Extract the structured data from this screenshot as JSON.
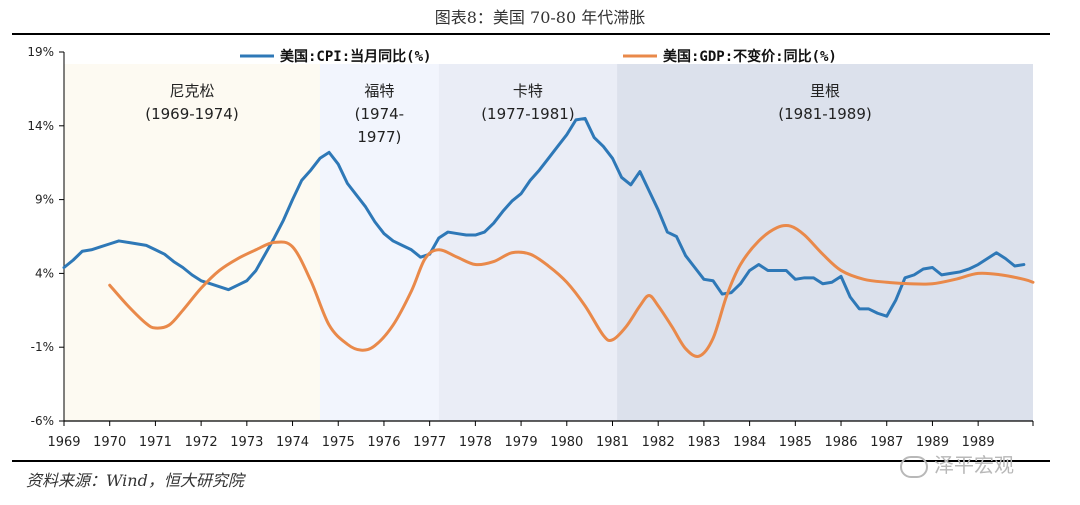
{
  "title": "图表8：美国 70-80 年代滞胀",
  "source": "资料来源：Wind，恒大研究院",
  "watermark": "泽平宏观",
  "colors": {
    "cpi": "#2e78b7",
    "gdp": "#e9894a",
    "axis": "#000000"
  },
  "chart_data": {
    "type": "line",
    "y_ticks": [
      "19%",
      "14%",
      "9%",
      "4%",
      "-1%",
      "-6%"
    ],
    "ylim": [
      -6,
      19
    ],
    "xlim": [
      1969,
      1990.2
    ],
    "x_ticks": [
      "1969",
      "1970",
      "1971",
      "1972",
      "1973",
      "1974",
      "1975",
      "1976",
      "1977",
      "1978",
      "1979",
      "1980",
      "1981",
      "1982",
      "1983",
      "1984",
      "1985",
      "1986",
      "1987",
      "1989",
      "1989"
    ],
    "legend_position": "top",
    "series": [
      {
        "name": "美国:CPI:当月同比(%)",
        "points": [
          [
            1969.0,
            4.4
          ],
          [
            1969.2,
            4.9
          ],
          [
            1969.4,
            5.5
          ],
          [
            1969.6,
            5.6
          ],
          [
            1969.8,
            5.8
          ],
          [
            1970.0,
            6.0
          ],
          [
            1970.2,
            6.2
          ],
          [
            1970.4,
            6.1
          ],
          [
            1970.6,
            6.0
          ],
          [
            1970.8,
            5.9
          ],
          [
            1971.0,
            5.6
          ],
          [
            1971.2,
            5.3
          ],
          [
            1971.4,
            4.8
          ],
          [
            1971.6,
            4.4
          ],
          [
            1971.8,
            3.9
          ],
          [
            1972.0,
            3.5
          ],
          [
            1972.2,
            3.3
          ],
          [
            1972.4,
            3.1
          ],
          [
            1972.6,
            2.9
          ],
          [
            1972.8,
            3.2
          ],
          [
            1973.0,
            3.5
          ],
          [
            1973.2,
            4.2
          ],
          [
            1973.4,
            5.3
          ],
          [
            1973.6,
            6.4
          ],
          [
            1973.8,
            7.6
          ],
          [
            1974.0,
            9.0
          ],
          [
            1974.2,
            10.3
          ],
          [
            1974.4,
            11.0
          ],
          [
            1974.6,
            11.8
          ],
          [
            1974.8,
            12.2
          ],
          [
            1975.0,
            11.4
          ],
          [
            1975.2,
            10.1
          ],
          [
            1975.4,
            9.3
          ],
          [
            1975.6,
            8.5
          ],
          [
            1975.8,
            7.5
          ],
          [
            1976.0,
            6.7
          ],
          [
            1976.2,
            6.2
          ],
          [
            1976.4,
            5.9
          ],
          [
            1976.6,
            5.6
          ],
          [
            1976.8,
            5.1
          ],
          [
            1977.0,
            5.3
          ],
          [
            1977.2,
            6.4
          ],
          [
            1977.4,
            6.8
          ],
          [
            1977.6,
            6.7
          ],
          [
            1977.8,
            6.6
          ],
          [
            1978.0,
            6.6
          ],
          [
            1978.2,
            6.8
          ],
          [
            1978.4,
            7.4
          ],
          [
            1978.6,
            8.2
          ],
          [
            1978.8,
            8.9
          ],
          [
            1979.0,
            9.4
          ],
          [
            1979.2,
            10.3
          ],
          [
            1979.4,
            11.0
          ],
          [
            1979.6,
            11.8
          ],
          [
            1979.8,
            12.6
          ],
          [
            1980.0,
            13.4
          ],
          [
            1980.2,
            14.4
          ],
          [
            1980.4,
            14.5
          ],
          [
            1980.6,
            13.2
          ],
          [
            1980.8,
            12.6
          ],
          [
            1981.0,
            11.8
          ],
          [
            1981.2,
            10.5
          ],
          [
            1981.4,
            10.0
          ],
          [
            1981.6,
            10.9
          ],
          [
            1981.8,
            9.6
          ],
          [
            1982.0,
            8.3
          ],
          [
            1982.2,
            6.8
          ],
          [
            1982.4,
            6.5
          ],
          [
            1982.6,
            5.2
          ],
          [
            1982.8,
            4.4
          ],
          [
            1983.0,
            3.6
          ],
          [
            1983.2,
            3.5
          ],
          [
            1983.4,
            2.6
          ],
          [
            1983.6,
            2.7
          ],
          [
            1983.8,
            3.3
          ],
          [
            1984.0,
            4.2
          ],
          [
            1984.2,
            4.6
          ],
          [
            1984.4,
            4.2
          ],
          [
            1984.6,
            4.2
          ],
          [
            1984.8,
            4.2
          ],
          [
            1985.0,
            3.6
          ],
          [
            1985.2,
            3.7
          ],
          [
            1985.4,
            3.7
          ],
          [
            1985.6,
            3.3
          ],
          [
            1985.8,
            3.4
          ],
          [
            1986.0,
            3.8
          ],
          [
            1986.2,
            2.4
          ],
          [
            1986.4,
            1.6
          ],
          [
            1986.6,
            1.6
          ],
          [
            1986.8,
            1.3
          ],
          [
            1987.0,
            1.1
          ],
          [
            1987.2,
            2.2
          ],
          [
            1987.4,
            3.7
          ],
          [
            1987.6,
            3.9
          ],
          [
            1987.8,
            4.3
          ],
          [
            1988.0,
            4.4
          ],
          [
            1988.2,
            3.9
          ],
          [
            1988.4,
            4.0
          ],
          [
            1988.6,
            4.1
          ],
          [
            1988.8,
            4.3
          ],
          [
            1989.0,
            4.6
          ],
          [
            1989.2,
            5.0
          ],
          [
            1989.4,
            5.4
          ],
          [
            1989.6,
            5.0
          ],
          [
            1989.8,
            4.5
          ],
          [
            1990.0,
            4.6
          ]
        ]
      },
      {
        "name": "美国:GDP:不变价:同比(%)",
        "points": [
          [
            1970.0,
            3.2
          ],
          [
            1970.4,
            1.8
          ],
          [
            1970.8,
            0.6
          ],
          [
            1971.0,
            0.3
          ],
          [
            1971.3,
            0.5
          ],
          [
            1971.6,
            1.5
          ],
          [
            1972.0,
            3.0
          ],
          [
            1972.4,
            4.2
          ],
          [
            1972.8,
            5.0
          ],
          [
            1973.2,
            5.6
          ],
          [
            1973.6,
            6.1
          ],
          [
            1974.0,
            5.8
          ],
          [
            1974.4,
            3.5
          ],
          [
            1974.8,
            0.5
          ],
          [
            1975.2,
            -0.8
          ],
          [
            1975.5,
            -1.2
          ],
          [
            1975.8,
            -0.9
          ],
          [
            1976.2,
            0.5
          ],
          [
            1976.6,
            2.8
          ],
          [
            1976.9,
            5.0
          ],
          [
            1977.2,
            5.6
          ],
          [
            1977.6,
            5.1
          ],
          [
            1978.0,
            4.6
          ],
          [
            1978.4,
            4.8
          ],
          [
            1978.8,
            5.4
          ],
          [
            1979.2,
            5.3
          ],
          [
            1979.6,
            4.5
          ],
          [
            1980.0,
            3.4
          ],
          [
            1980.4,
            1.8
          ],
          [
            1980.8,
            -0.2
          ],
          [
            1981.0,
            -0.5
          ],
          [
            1981.3,
            0.4
          ],
          [
            1981.6,
            1.8
          ],
          [
            1981.8,
            2.5
          ],
          [
            1982.0,
            1.8
          ],
          [
            1982.3,
            0.4
          ],
          [
            1982.6,
            -1.1
          ],
          [
            1982.9,
            -1.6
          ],
          [
            1983.2,
            -0.4
          ],
          [
            1983.5,
            2.5
          ],
          [
            1983.8,
            4.6
          ],
          [
            1984.2,
            6.2
          ],
          [
            1984.6,
            7.1
          ],
          [
            1984.9,
            7.2
          ],
          [
            1985.2,
            6.6
          ],
          [
            1985.6,
            5.3
          ],
          [
            1986.0,
            4.2
          ],
          [
            1986.5,
            3.6
          ],
          [
            1987.0,
            3.4
          ],
          [
            1987.5,
            3.3
          ],
          [
            1988.0,
            3.3
          ],
          [
            1988.5,
            3.6
          ],
          [
            1989.0,
            4.0
          ],
          [
            1989.5,
            3.9
          ],
          [
            1990.0,
            3.6
          ],
          [
            1990.2,
            3.4
          ]
        ]
      }
    ],
    "periods": [
      {
        "label": "尼克松",
        "years": "(1969-1974)",
        "start": 1969.0,
        "end": 1974.6,
        "color": "#fdfaf2"
      },
      {
        "label": "福特",
        "years": "(1974-1977)",
        "start": 1974.6,
        "end": 1977.2,
        "color": "#f2f5fd"
      },
      {
        "label": "卡特",
        "years": "(1977-1981)",
        "start": 1977.2,
        "end": 1981.1,
        "color": "#eaedf6"
      },
      {
        "label": "里根",
        "years": "(1981-1989)",
        "start": 1981.1,
        "end": 1990.2,
        "color": "#dce1ec"
      }
    ]
  }
}
